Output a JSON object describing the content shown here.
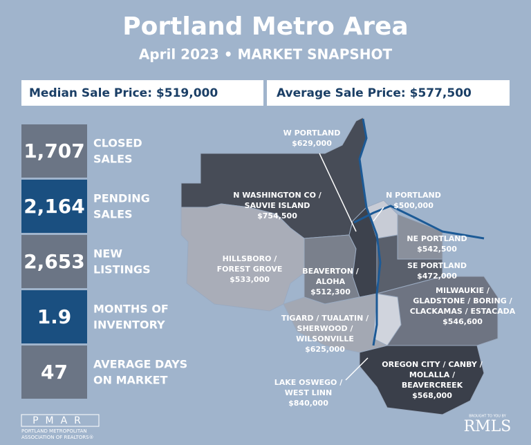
{
  "header": {
    "title": "Portland Metro Area",
    "subtitle": "April 2023 • MARKET SNAPSHOT"
  },
  "prices": [
    "Median Sale Price: $519,000",
    "Average Sale Price: $577,500"
  ],
  "stats": [
    {
      "value": "1,707",
      "label": [
        "CLOSED",
        "SALES"
      ]
    },
    {
      "value": "2,164",
      "label": [
        "PENDING",
        "SALES"
      ]
    },
    {
      "value": "2,653",
      "label": [
        "NEW",
        "LISTINGS"
      ]
    },
    {
      "value": "1.9",
      "label": [
        "MONTHS OF",
        "INVENTORY"
      ]
    },
    {
      "value": "47",
      "label": [
        "AVERAGE DAYS",
        "ON MARKET"
      ]
    }
  ],
  "map": {
    "regions": [
      {
        "lines": [
          "W PORTLAND",
          "$629,000"
        ]
      },
      {
        "lines": [
          "N WASHINGTON CO /",
          "SAUVIE ISLAND",
          "$754,500"
        ]
      },
      {
        "lines": [
          "N PORTLAND",
          "$500,000"
        ]
      },
      {
        "lines": [
          "HILLSBORO /",
          "FOREST GROVE",
          "$533,000"
        ]
      },
      {
        "lines": [
          "BEAVERTON /",
          "ALOHA",
          "$512,300"
        ]
      },
      {
        "lines": [
          "NE PORTLAND",
          "$542,500"
        ]
      },
      {
        "lines": [
          "SE PORTLAND",
          "$472,000"
        ]
      },
      {
        "lines": [
          "MILWAUKIE /",
          "GLADSTONE / BORING /",
          "CLACKAMAS / ESTACADA",
          "$546,600"
        ]
      },
      {
        "lines": [
          "TIGARD / TUALATIN /",
          "SHERWOOD /",
          "WILSONVILLE",
          "$625,000"
        ]
      },
      {
        "lines": [
          "OREGON CITY / CANBY /",
          "MOLALLA /",
          "BEAVERCREEK",
          "$568,000"
        ]
      },
      {
        "lines": [
          "LAKE OSWEGO /",
          "WEST LINN",
          "$840,000"
        ]
      }
    ]
  },
  "footer": {
    "pmar": "PMAR",
    "pmar_name": [
      "PORTLAND METROPOLITAN",
      "ASSOCIATION OF REALTORS®"
    ],
    "credit": "BROUGHT TO YOU BY",
    "rmls": "RMLS"
  }
}
